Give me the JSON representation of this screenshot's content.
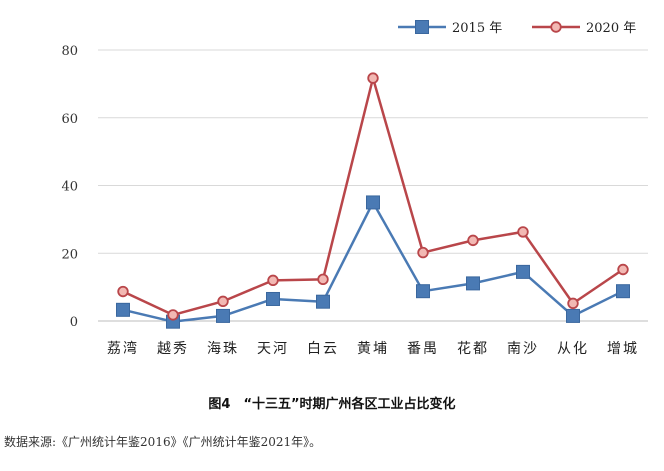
{
  "chart_data": {
    "type": "line",
    "categories": [
      "荔湾",
      "越秀",
      "海珠",
      "天河",
      "白云",
      "黄埔",
      "番禺",
      "花都",
      "南沙",
      "从化",
      "增城"
    ],
    "series": [
      {
        "name": "2015 年",
        "color": "#4a7ab4",
        "marker": "square",
        "values": [
          3.3,
          -0.2,
          1.5,
          6.5,
          5.7,
          35,
          8.8,
          11.1,
          14.5,
          1.5,
          8.8
        ]
      },
      {
        "name": "2020 年",
        "color": "#b9464a",
        "marker": "circle",
        "values": [
          8.7,
          1.8,
          5.8,
          12.0,
          12.3,
          71.7,
          20.2,
          23.8,
          26.3,
          5.2,
          15.2
        ]
      }
    ],
    "ylim": [
      0,
      80
    ],
    "yticks": [
      0,
      20,
      40,
      60,
      80
    ],
    "grid": true,
    "legend": "top-right",
    "title": "图4　“十三五”时期广州各区工业占比变化",
    "source": "数据来源:《广州统计年鉴2016》《广州统计年鉴2021年》。"
  }
}
